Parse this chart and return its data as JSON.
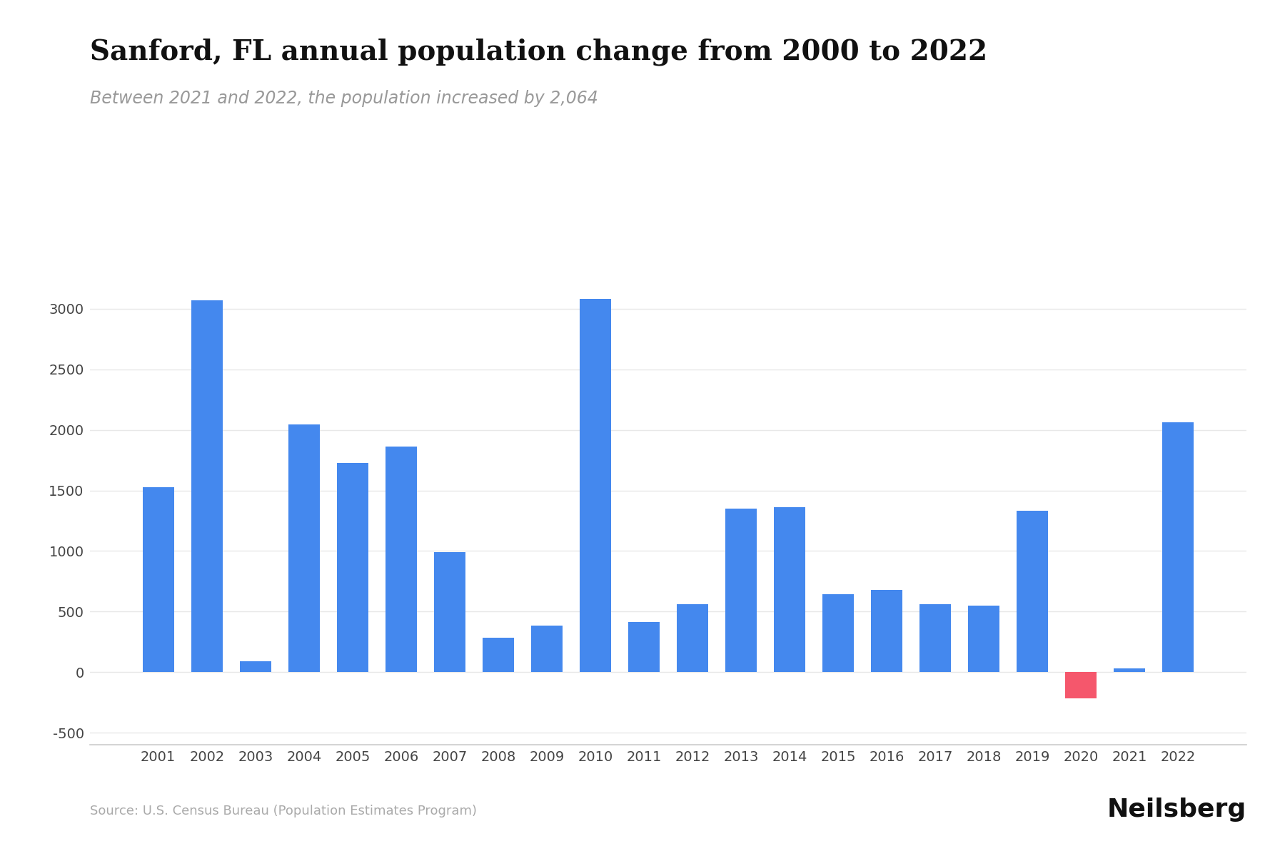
{
  "title": "Sanford, FL annual population change from 2000 to 2022",
  "subtitle": "Between 2021 and 2022, the population increased by 2,064",
  "source": "Source: U.S. Census Bureau (Population Estimates Program)",
  "years": [
    2001,
    2002,
    2003,
    2004,
    2005,
    2006,
    2007,
    2008,
    2009,
    2010,
    2011,
    2012,
    2013,
    2014,
    2015,
    2016,
    2017,
    2018,
    2019,
    2020,
    2021,
    2022
  ],
  "values": [
    1524,
    3072,
    88,
    2046,
    1728,
    1861,
    990,
    284,
    385,
    3080,
    415,
    559,
    1351,
    1363,
    641,
    681,
    560,
    547,
    1330,
    -220,
    30,
    2064
  ],
  "bar_color_positive": "#4488ee",
  "bar_color_negative": "#f5576c",
  "background_color": "#ffffff",
  "ylim_min": -600,
  "ylim_max": 3500,
  "yticks": [
    -500,
    0,
    500,
    1000,
    1500,
    2000,
    2500,
    3000
  ],
  "title_fontsize": 28,
  "subtitle_fontsize": 17,
  "axis_fontsize": 14,
  "source_fontsize": 13,
  "neilsberg_fontsize": 26,
  "grid_color": "#e8e8e8"
}
